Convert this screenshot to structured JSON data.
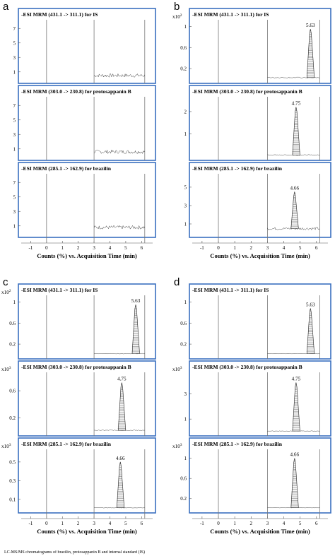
{
  "caption": "LC-MS/MS chromatograms of brazilin, protosappanin B and internal standard (IS)",
  "chart_data": [
    {
      "panel": "a",
      "type": "line",
      "xlabel": "Counts (%) vs. Acquisition Time (min)",
      "x_ticks": [
        -1,
        0,
        1,
        2,
        3,
        4,
        5,
        6
      ],
      "xlim": [
        -1.6,
        6.7
      ],
      "vlines": [
        0,
        3,
        6.2
      ],
      "traces": [
        {
          "title": "-ESI MRM (431.1 -> 311.1) for IS",
          "scale": "",
          "y_ticks": [
            1,
            3,
            5,
            7
          ],
          "ylim": [
            0,
            8
          ],
          "baseline": 0.5,
          "noise": 0.25,
          "noise_start": 3.0,
          "peak": null
        },
        {
          "title": "-ESI MRM (303.0 -> 230.8) for protosappanin B",
          "scale": "",
          "y_ticks": [
            1,
            3,
            5,
            7
          ],
          "ylim": [
            0,
            8
          ],
          "baseline": 0.6,
          "noise": 0.25,
          "noise_start": 3.0,
          "peak": null
        },
        {
          "title": "-ESI MRM (285.1 -> 162.9) for brazilin",
          "scale": "",
          "y_ticks": [
            1,
            3,
            5,
            7
          ],
          "ylim": [
            0,
            8
          ],
          "baseline": 0.8,
          "noise": 0.25,
          "noise_start": 3.0,
          "peak": null
        }
      ]
    },
    {
      "panel": "b",
      "type": "line",
      "xlabel": "Counts (%) vs. Acquisition Time (min)",
      "x_ticks": [
        -1,
        0,
        1,
        2,
        3,
        4,
        5,
        6
      ],
      "xlim": [
        -1.6,
        6.7
      ],
      "vlines": [
        0,
        3,
        6.2
      ],
      "traces": [
        {
          "title": "-ESI MRM (431.1 -> 311.1) for IS",
          "scale": "x10 2",
          "y_ticks": [
            0.2,
            0.6,
            1
          ],
          "ylim": [
            0,
            1.1
          ],
          "baseline": 0.03,
          "noise": 0.01,
          "noise_start": 3.0,
          "peak": {
            "x": 5.63,
            "height": 0.95,
            "label": "5.63"
          }
        },
        {
          "title": "-ESI MRM (303.0 -> 230.8) for protosappanin B",
          "scale": "",
          "y_ticks": [
            1,
            2
          ],
          "ylim": [
            0,
            2.6
          ],
          "baseline": 0.05,
          "noise": 0.02,
          "noise_start": 3.0,
          "peak": {
            "x": 4.75,
            "height": 2.2,
            "label": "4.75"
          }
        },
        {
          "title": "-ESI MRM (285.1 -> 162.9) for brazilin",
          "scale": "",
          "y_ticks": [
            1,
            3,
            5
          ],
          "ylim": [
            0,
            6.3
          ],
          "baseline": 0.5,
          "noise": 0.15,
          "noise_start": 3.0,
          "peak": {
            "x": 4.66,
            "height": 4.5,
            "label": "4.66"
          }
        }
      ]
    },
    {
      "panel": "c",
      "type": "line",
      "xlabel": "Counts (%) vs. Acquisition Time (min)",
      "x_ticks": [
        -1,
        0,
        1,
        2,
        3,
        4,
        5,
        6
      ],
      "xlim": [
        -1.6,
        6.7
      ],
      "vlines": [
        0,
        3,
        6.2
      ],
      "traces": [
        {
          "title": "-ESI MRM (431.1 -> 311.1) for IS",
          "scale": "x10 2",
          "y_ticks": [
            0.2,
            0.6,
            1
          ],
          "ylim": [
            0,
            1.1
          ],
          "baseline": 0.02,
          "noise": 0.005,
          "noise_start": 3.0,
          "peak": {
            "x": 5.63,
            "height": 0.95,
            "label": "5.63"
          }
        },
        {
          "title": "-ESI MRM (303.0 -> 230.8) for protosappanin B",
          "scale": "x10 3",
          "y_ticks": [
            0.2,
            0.6
          ],
          "ylim": [
            0,
            0.85
          ],
          "baseline": 0.02,
          "noise": 0.005,
          "noise_start": 3.0,
          "peak": {
            "x": 4.75,
            "height": 0.72,
            "label": "4.75"
          }
        },
        {
          "title": "-ESI MRM (285.1 -> 162.9) for brazilin",
          "scale": "x10 3",
          "y_ticks": [
            0.1,
            0.3,
            0.5
          ],
          "ylim": [
            0,
            0.62
          ],
          "baseline": 0.01,
          "noise": 0.003,
          "noise_start": 3.0,
          "peak": {
            "x": 4.66,
            "height": 0.5,
            "label": "4.66"
          }
        }
      ]
    },
    {
      "panel": "d",
      "type": "line",
      "xlabel": "Counts (%) vs. Acquisition Time (min)",
      "x_ticks": [
        -1,
        0,
        1,
        2,
        3,
        4,
        5,
        6
      ],
      "xlim": [
        -1.6,
        6.7
      ],
      "vlines": [
        0,
        3,
        6.2
      ],
      "traces": [
        {
          "title": "-ESI MRM (431.1 -> 311.1) for IS",
          "scale": "",
          "y_ticks": [
            0.2,
            0.6,
            1
          ],
          "ylim": [
            0,
            1.1
          ],
          "baseline": 0.02,
          "noise": 0.005,
          "noise_start": 3.0,
          "peak": {
            "x": 5.63,
            "height": 0.88,
            "label": "5.63"
          }
        },
        {
          "title": "-ESI MRM (303.0 -> 230.8) for protosappanin B",
          "scale": "x10 3",
          "y_ticks": [
            1,
            3
          ],
          "ylim": [
            0,
            4.6
          ],
          "baseline": 0.05,
          "noise": 0.02,
          "noise_start": 3.0,
          "peak": {
            "x": 4.75,
            "height": 3.9,
            "label": "4.75"
          }
        },
        {
          "title": "-ESI MRM (285.1 -> 162.9) for brazilin",
          "scale": "x10 3",
          "y_ticks": [
            0.2,
            0.6,
            1
          ],
          "ylim": [
            0,
            1.15
          ],
          "baseline": 0.02,
          "noise": 0.005,
          "noise_start": 3.0,
          "peak": {
            "x": 4.66,
            "height": 1.0,
            "label": "4.66"
          }
        }
      ]
    }
  ]
}
